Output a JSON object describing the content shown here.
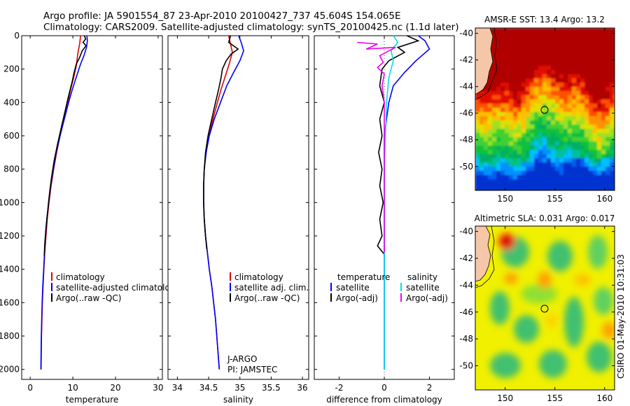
{
  "header": {
    "line1": "Argo profile: JA 5901554_87 23-Apr-2010 20100427_737 45.604S 154.065E",
    "line2": "Climatology: CARS2009. Satellite-adjusted climatology: synTS_20100425.nc (1.1d later)"
  },
  "side_text": "CSIRO 01-May-2010 10:31:03",
  "colors": {
    "red": "#e00000",
    "blue": "#0000ff",
    "black": "#000000",
    "cyan": "#00e0e0",
    "magenta": "#ee00ee"
  },
  "chart_data": [
    {
      "type": "line",
      "id": "temperature",
      "xlabel": "temperature",
      "ylabel": "",
      "xlim": [
        -2,
        31
      ],
      "ylim": [
        0,
        2060
      ],
      "xticks": [
        0,
        10,
        20,
        30
      ],
      "xtick_labels": [
        "0",
        "10",
        "20",
        "30"
      ],
      "yticks": [
        0,
        200,
        400,
        600,
        800,
        1000,
        1200,
        1400,
        1600,
        1800,
        2000
      ],
      "ytick_labels": [
        "0",
        "200",
        "400",
        "600",
        "800",
        "1000",
        "1200",
        "1400",
        "1600",
        "1800",
        "2000"
      ],
      "legend": [
        "climatology",
        "satellite-adjusted climatology",
        "Argo(..raw -QC)"
      ],
      "annotation": [
        "",
        ""
      ],
      "series": [
        {
          "name": "climatology",
          "color": "red",
          "points": [
            [
              11.8,
              0
            ],
            [
              11.6,
              50
            ],
            [
              11.2,
              100
            ],
            [
              10.8,
              180
            ],
            [
              10.2,
              250
            ],
            [
              9.5,
              320
            ],
            [
              8.8,
              400
            ],
            [
              7.9,
              500
            ],
            [
              7.0,
              600
            ],
            [
              6.2,
              700
            ],
            [
              5.5,
              800
            ],
            [
              4.9,
              900
            ],
            [
              4.4,
              1000
            ],
            [
              4.0,
              1100
            ],
            [
              3.7,
              1200
            ],
            [
              3.4,
              1300
            ],
            [
              3.2,
              1400
            ],
            [
              3.0,
              1500
            ],
            [
              2.85,
              1600
            ],
            [
              2.75,
              1700
            ],
            [
              2.65,
              1800
            ],
            [
              2.6,
              1900
            ],
            [
              2.55,
              2000
            ]
          ]
        },
        {
          "name": "satellite-adjusted climatology",
          "color": "blue",
          "points": [
            [
              13.3,
              0
            ],
            [
              13.4,
              30
            ],
            [
              13.2,
              70
            ],
            [
              12.6,
              120
            ],
            [
              11.8,
              170
            ],
            [
              10.9,
              240
            ],
            [
              9.9,
              320
            ],
            [
              9.0,
              400
            ],
            [
              8.0,
              500
            ],
            [
              7.0,
              600
            ],
            [
              6.1,
              700
            ],
            [
              5.4,
              800
            ],
            [
              4.8,
              900
            ],
            [
              4.3,
              1000
            ],
            [
              3.9,
              1100
            ],
            [
              3.6,
              1200
            ],
            [
              3.35,
              1300
            ],
            [
              3.15,
              1400
            ],
            [
              2.95,
              1500
            ],
            [
              2.8,
              1600
            ],
            [
              2.7,
              1700
            ],
            [
              2.6,
              1800
            ],
            [
              2.55,
              1900
            ],
            [
              2.5,
              2000
            ]
          ]
        },
        {
          "name": "Argo(..raw -QC)",
          "color": "black",
          "points": [
            [
              12.7,
              0
            ],
            [
              13.0,
              20
            ],
            [
              12.4,
              40
            ],
            [
              13.1,
              60
            ],
            [
              12.2,
              90
            ],
            [
              11.6,
              130
            ],
            [
              10.8,
              170
            ],
            [
              10.3,
              220
            ],
            [
              9.8,
              280
            ],
            [
              9.0,
              360
            ],
            [
              8.2,
              450
            ],
            [
              7.3,
              550
            ],
            [
              6.4,
              650
            ],
            [
              5.6,
              750
            ],
            [
              5.0,
              850
            ],
            [
              4.5,
              950
            ],
            [
              4.1,
              1050
            ],
            [
              3.7,
              1150
            ],
            [
              3.4,
              1250
            ],
            [
              3.3,
              1320
            ]
          ]
        }
      ]
    },
    {
      "type": "line",
      "id": "salinity",
      "xlabel": "salinity",
      "ylabel": "",
      "xlim": [
        33.85,
        36.1
      ],
      "ylim": [
        0,
        2060
      ],
      "xticks": [
        34,
        34.5,
        35,
        35.5,
        36
      ],
      "xtick_labels": [
        "34",
        "34.5",
        "35",
        "35.5",
        "36"
      ],
      "yticks": [
        0,
        200,
        400,
        600,
        800,
        1000,
        1200,
        1400,
        1600,
        1800,
        2000
      ],
      "ytick_labels": [
        "",
        "",
        "",
        "",
        "",
        "",
        "",
        "",
        "",
        "",
        ""
      ],
      "legend": [
        "climatology",
        "satellite adj. clim.",
        "Argo(..raw -QC)"
      ],
      "annotation": [
        "J-ARGO",
        "PI: JAMSTEC"
      ],
      "series": [
        {
          "name": "climatology",
          "color": "red",
          "points": [
            [
              34.82,
              0
            ],
            [
              34.85,
              50
            ],
            [
              34.88,
              100
            ],
            [
              34.82,
              180
            ],
            [
              34.76,
              250
            ],
            [
              34.7,
              320
            ],
            [
              34.64,
              400
            ],
            [
              34.57,
              500
            ],
            [
              34.5,
              600
            ],
            [
              34.46,
              700
            ],
            [
              34.43,
              800
            ],
            [
              34.42,
              900
            ],
            [
              34.42,
              1000
            ],
            [
              34.43,
              1100
            ],
            [
              34.45,
              1200
            ],
            [
              34.48,
              1300
            ],
            [
              34.51,
              1400
            ],
            [
              34.55,
              1500
            ],
            [
              34.58,
              1600
            ],
            [
              34.61,
              1700
            ],
            [
              34.63,
              1800
            ],
            [
              34.65,
              1900
            ],
            [
              34.67,
              2000
            ]
          ]
        },
        {
          "name": "satellite adj. clim.",
          "color": "blue",
          "points": [
            [
              34.98,
              0
            ],
            [
              35.02,
              40
            ],
            [
              35.06,
              90
            ],
            [
              35.0,
              150
            ],
            [
              34.9,
              220
            ],
            [
              34.79,
              300
            ],
            [
              34.69,
              400
            ],
            [
              34.59,
              500
            ],
            [
              34.51,
              600
            ],
            [
              34.46,
              700
            ],
            [
              34.43,
              800
            ],
            [
              34.42,
              900
            ],
            [
              34.42,
              1000
            ],
            [
              34.43,
              1100
            ],
            [
              34.45,
              1200
            ],
            [
              34.48,
              1300
            ],
            [
              34.51,
              1400
            ],
            [
              34.55,
              1500
            ],
            [
              34.58,
              1600
            ],
            [
              34.61,
              1700
            ],
            [
              34.63,
              1800
            ],
            [
              34.65,
              1900
            ],
            [
              34.67,
              2000
            ]
          ]
        },
        {
          "name": "Argo(..raw -QC)",
          "color": "black",
          "points": [
            [
              34.85,
              0
            ],
            [
              34.82,
              40
            ],
            [
              34.97,
              80
            ],
            [
              34.86,
              110
            ],
            [
              34.78,
              150
            ],
            [
              34.72,
              200
            ],
            [
              34.7,
              250
            ],
            [
              34.66,
              320
            ],
            [
              34.61,
              400
            ],
            [
              34.55,
              500
            ],
            [
              34.49,
              600
            ],
            [
              34.45,
              700
            ],
            [
              34.43,
              800
            ],
            [
              34.42,
              900
            ],
            [
              34.42,
              1000
            ],
            [
              34.43,
              1100
            ],
            [
              34.45,
              1200
            ],
            [
              34.47,
              1280
            ]
          ]
        }
      ]
    },
    {
      "type": "line",
      "id": "difference",
      "xlabel": "difference from climatology",
      "ylabel": "",
      "xlim": [
        -3.1,
        3.1
      ],
      "ylim": [
        0,
        2060
      ],
      "xticks": [
        -2,
        0,
        2
      ],
      "xtick_labels": [
        "-2",
        "0",
        "2"
      ],
      "yticks": [
        0,
        200,
        400,
        600,
        800,
        1000,
        1200,
        1400,
        1600,
        1800,
        2000
      ],
      "ytick_labels": [
        "",
        "",
        "",
        "",
        "",
        "",
        "",
        "",
        "",
        "",
        ""
      ],
      "legend": [
        "temperature",
        "satellite",
        "Argo(-adj)",
        "salinity",
        "satellite",
        "Argo(-adj)"
      ],
      "annotation": [
        "",
        ""
      ],
      "series": [
        {
          "name": "temperature satellite",
          "color": "blue",
          "points": [
            [
              1.5,
              0
            ],
            [
              1.8,
              30
            ],
            [
              2.0,
              80
            ],
            [
              1.4,
              150
            ],
            [
              0.9,
              220
            ],
            [
              0.4,
              300
            ],
            [
              0.2,
              400
            ],
            [
              0.1,
              500
            ],
            [
              0.0,
              600
            ],
            [
              0.0,
              800
            ],
            [
              0.0,
              2000
            ]
          ]
        },
        {
          "name": "temperature Argo(-adj)",
          "color": "black",
          "points": [
            [
              1.0,
              0
            ],
            [
              1.5,
              30
            ],
            [
              0.6,
              70
            ],
            [
              0.9,
              100
            ],
            [
              0.2,
              150
            ],
            [
              -0.1,
              200
            ],
            [
              -0.2,
              300
            ],
            [
              0.0,
              400
            ],
            [
              -0.2,
              500
            ],
            [
              -0.1,
              600
            ],
            [
              -0.25,
              700
            ],
            [
              -0.1,
              800
            ],
            [
              -0.2,
              900
            ],
            [
              -0.05,
              1000
            ],
            [
              -0.2,
              1100
            ],
            [
              -0.1,
              1200
            ],
            [
              -0.3,
              1260
            ],
            [
              0.0,
              1310
            ]
          ]
        },
        {
          "name": "salinity satellite",
          "color": "cyan",
          "points": [
            [
              0.4,
              0
            ],
            [
              0.6,
              40
            ],
            [
              0.3,
              90
            ],
            [
              0.4,
              150
            ],
            [
              0.2,
              250
            ],
            [
              0.1,
              400
            ],
            [
              0.05,
              600
            ],
            [
              0.0,
              800
            ],
            [
              0.0,
              2000
            ]
          ]
        },
        {
          "name": "salinity Argo(-adj)",
          "color": "magenta",
          "points": [
            [
              -1.2,
              40
            ],
            [
              -0.3,
              50
            ],
            [
              -0.8,
              80
            ],
            [
              0.5,
              70
            ],
            [
              -0.2,
              120
            ],
            [
              -0.05,
              160
            ],
            [
              -0.3,
              190
            ],
            [
              0.0,
              230
            ],
            [
              -0.1,
              300
            ],
            [
              0.0,
              400
            ],
            [
              0.0,
              1300
            ]
          ]
        }
      ]
    },
    {
      "type": "heatmap",
      "id": "sst_map",
      "title": "AMSR-E SST: 13.4 Argo: 13.2",
      "xlim": [
        147,
        161
      ],
      "ylim": [
        -51.8,
        -39.6
      ],
      "xticks": [
        150,
        155,
        160
      ],
      "xtick_labels": [
        "150",
        "155",
        "160"
      ],
      "yticks": [
        -40,
        -42,
        -44,
        -46,
        -48,
        -50
      ],
      "ytick_labels": [
        "-40",
        "-42",
        "-44",
        "-46",
        "-48",
        "-50"
      ],
      "marker": [
        154.065,
        -45.604
      ]
    },
    {
      "type": "heatmap",
      "id": "sla_map",
      "title": "Altimetric SLA: 0.031 Argo: 0.017",
      "xlim": [
        147,
        161
      ],
      "ylim": [
        -51.8,
        -39.6
      ],
      "xticks": [
        150,
        155,
        160
      ],
      "xtick_labels": [
        "150",
        "155",
        "160"
      ],
      "yticks": [
        -40,
        -42,
        -44,
        -46,
        -48,
        -50
      ],
      "ytick_labels": [
        "-40",
        "-42",
        "-44",
        "-46",
        "-48",
        "-50"
      ],
      "marker": [
        154.065,
        -45.604
      ]
    }
  ]
}
